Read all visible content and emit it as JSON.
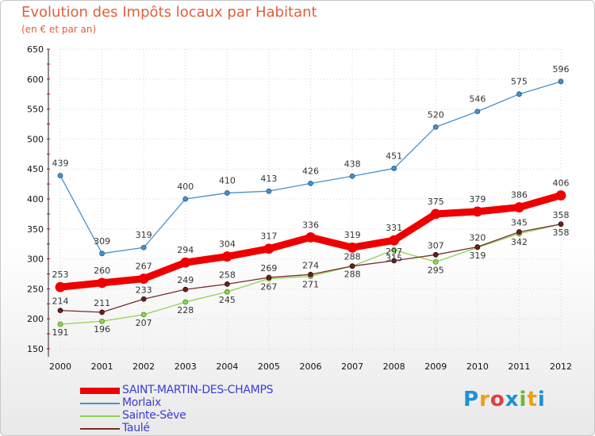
{
  "header": {
    "title": "Evolution des Impôts locaux par Habitant",
    "subtitle": "(en € et par an)"
  },
  "logo": {
    "letters": [
      "P",
      "r",
      "o",
      "x",
      "i",
      "t",
      "i"
    ],
    "colors": [
      "#1e90d8",
      "#f39c12",
      "#e04040",
      "#1e90d8",
      "#6ab832",
      "#f39c12",
      "#1e90d8"
    ]
  },
  "chart_data": {
    "type": "line",
    "x": [
      "2000",
      "2001",
      "2002",
      "2003",
      "2004",
      "2005",
      "2006",
      "2007",
      "2008",
      "2009",
      "2010",
      "2011",
      "2012"
    ],
    "ylim": [
      150,
      650
    ],
    "yticks": [
      150,
      200,
      250,
      300,
      350,
      400,
      450,
      500,
      550,
      600,
      650
    ],
    "grid": true,
    "legend_position": "bottom-left",
    "series": [
      {
        "name": "SAINT-MARTIN-DES-CHAMPS",
        "color": "#ee0000",
        "values": [
          253,
          260,
          267,
          294,
          304,
          317,
          336,
          319,
          331,
          375,
          379,
          386,
          406
        ]
      },
      {
        "name": "Morlaix",
        "color": "#4a90c8",
        "values": [
          439,
          309,
          319,
          400,
          410,
          413,
          426,
          438,
          451,
          520,
          546,
          575,
          596
        ]
      },
      {
        "name": "Sainte-Sève",
        "color": "#8fd34f",
        "values": [
          191,
          196,
          207,
          228,
          245,
          267,
          271,
          288,
          315,
          295,
          319,
          342,
          358
        ]
      },
      {
        "name": "Taulé",
        "color": "#7a2a2a",
        "values": [
          214,
          211,
          233,
          249,
          258,
          269,
          274,
          288,
          297,
          307,
          320,
          345,
          358
        ]
      }
    ]
  }
}
